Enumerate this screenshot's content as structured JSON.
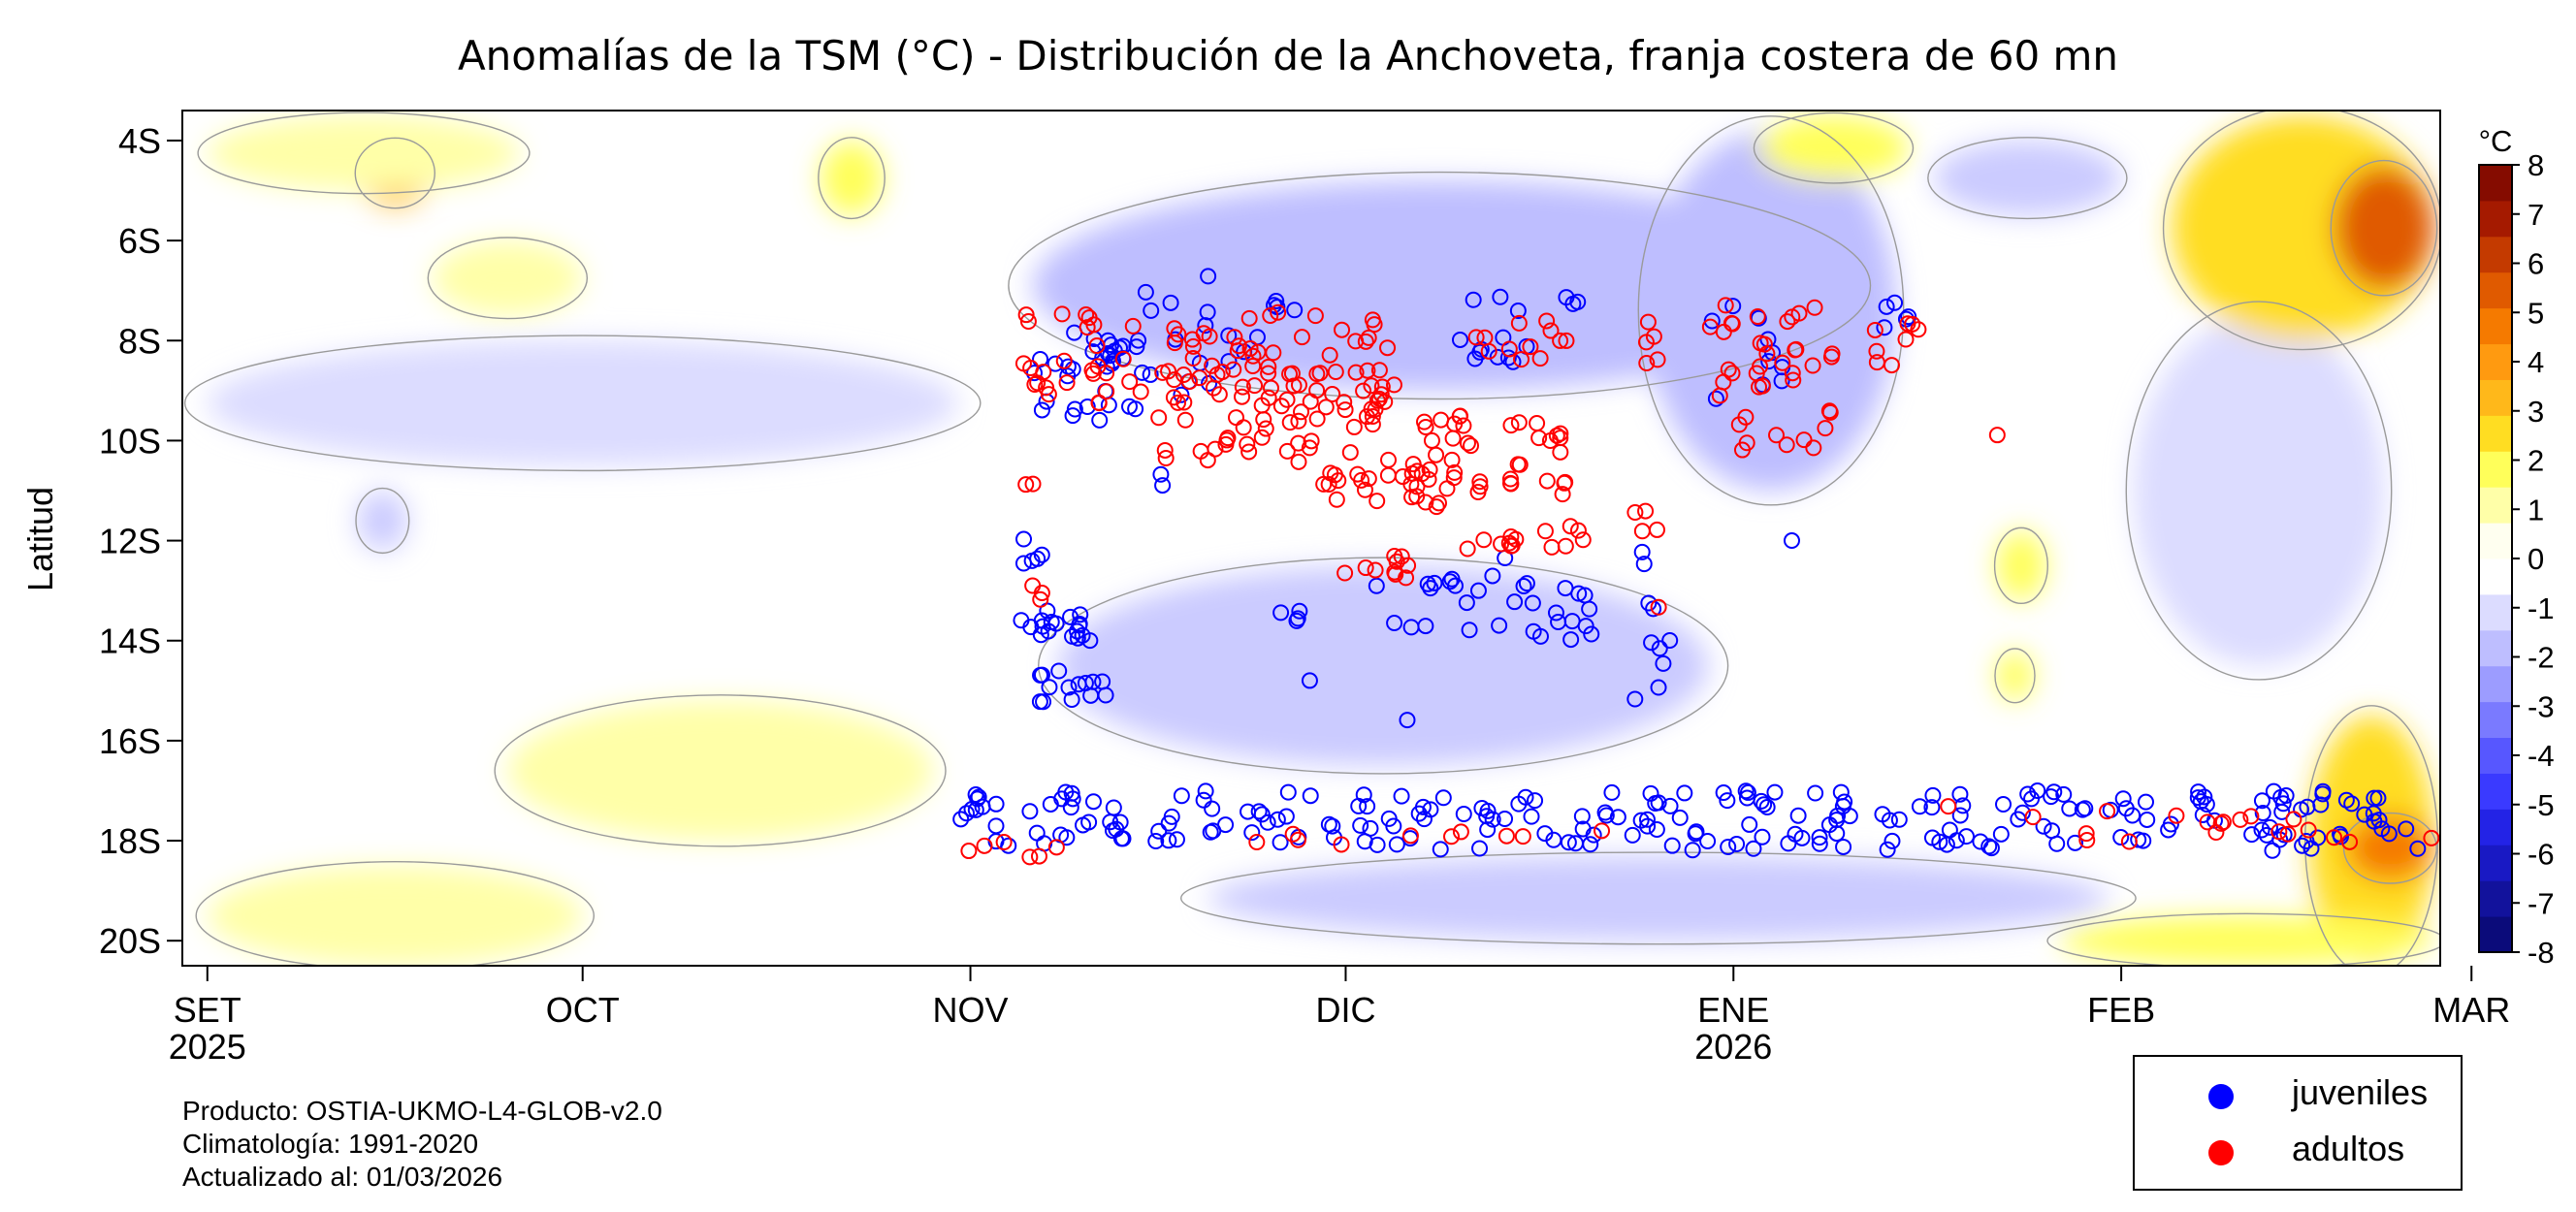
{
  "chart_data": {
    "type": "heatmap",
    "title": "Anomalías de la TSM (°C) - Distribución de la Anchoveta, franja costera de 60 mn",
    "ylabel": "Latitud",
    "y_ticks": [
      "4S",
      "6S",
      "8S",
      "10S",
      "12S",
      "14S",
      "16S",
      "18S",
      "20S"
    ],
    "y_tick_values": [
      4,
      6,
      8,
      10,
      12,
      14,
      16,
      18,
      20
    ],
    "ylim": [
      3.4,
      20.5
    ],
    "x_ticks": [
      {
        "label": "SET",
        "year": "2025",
        "day": 0
      },
      {
        "label": "OCT",
        "year": "",
        "day": 30
      },
      {
        "label": "NOV",
        "year": "",
        "day": 61
      },
      {
        "label": "DIC",
        "year": "",
        "day": 91
      },
      {
        "label": "ENE",
        "year": "2026",
        "day": 122
      },
      {
        "label": "FEB",
        "year": "",
        "day": 153
      },
      {
        "label": "MAR",
        "year": "",
        "day": 181
      }
    ],
    "xlim_days": [
      -2,
      178.5
    ],
    "colorbar": {
      "unit": "°C",
      "min": -8,
      "max": 8,
      "labels": [
        "8",
        "7",
        "6",
        "5",
        "4",
        "3",
        "2",
        "1",
        "0",
        "-1",
        "-2",
        "-3",
        "-4",
        "-5",
        "-6",
        "-7",
        "-8"
      ],
      "colors_low_to_high": [
        "#0b0b7a",
        "#12129c",
        "#1919c4",
        "#2323e6",
        "#3a3aff",
        "#5757ff",
        "#7a7aff",
        "#9c9cff",
        "#bebeff",
        "#dcdcff",
        "#ffffff",
        "#fffff0",
        "#ffffa8",
        "#ffff5a",
        "#ffdd22",
        "#ffb81a",
        "#ff9a10",
        "#f57a00",
        "#e05a00",
        "#c43a00",
        "#a51a00",
        "#850c00"
      ]
    },
    "anomaly_regions": [
      {
        "sign": "neg",
        "day_start": 66,
        "day_end": 131,
        "lat_start": 4.8,
        "lat_end": 9.0,
        "value": -1.6
      },
      {
        "sign": "neg",
        "day_start": 115,
        "day_end": 135,
        "lat_start": 3.8,
        "lat_end": 11.0,
        "value": -1.9
      },
      {
        "sign": "neg",
        "day_start": 68,
        "day_end": 120,
        "lat_start": 12.5,
        "lat_end": 16.5,
        "value": -1.4
      },
      {
        "sign": "neg",
        "day_start": 80,
        "day_end": 152,
        "lat_start": 18.3,
        "lat_end": 20.0,
        "value": -1.2
      },
      {
        "sign": "neg",
        "day_start": 138,
        "day_end": 153,
        "lat_start": 4.0,
        "lat_end": 5.5,
        "value": -1.5
      },
      {
        "sign": "neg",
        "day_start": 154,
        "day_end": 174,
        "lat_start": 7.5,
        "lat_end": 14.5,
        "value": -1.0
      },
      {
        "sign": "neg",
        "day_start": 12,
        "day_end": 16,
        "lat_start": 11.0,
        "lat_end": 12.2,
        "value": -1.4
      },
      {
        "sign": "neg",
        "day_start": 0,
        "day_end": 60,
        "lat_start": 8.0,
        "lat_end": 10.5,
        "value": -0.6
      },
      {
        "sign": "pos",
        "day_start": 157,
        "day_end": 178,
        "lat_start": 3.5,
        "lat_end": 8.0,
        "value": 2.3
      },
      {
        "sign": "pos",
        "day_start": 170,
        "day_end": 178,
        "lat_start": 4.5,
        "lat_end": 7.0,
        "value": 4.2
      },
      {
        "sign": "pos",
        "day_start": 168,
        "day_end": 178,
        "lat_start": 15.5,
        "lat_end": 20.5,
        "value": 2.2
      },
      {
        "sign": "pos",
        "day_start": 171,
        "day_end": 178,
        "lat_start": 17.5,
        "lat_end": 18.8,
        "value": 3.2
      },
      {
        "sign": "pos",
        "day_start": 148,
        "day_end": 178,
        "lat_start": 19.5,
        "lat_end": 20.5,
        "value": 1.6
      },
      {
        "sign": "pos",
        "day_start": 12,
        "day_end": 18,
        "lat_start": 4.0,
        "lat_end": 5.3,
        "value": 2.6
      },
      {
        "sign": "pos",
        "day_start": 0,
        "day_end": 25,
        "lat_start": 3.5,
        "lat_end": 5.0,
        "value": 1.0
      },
      {
        "sign": "pos",
        "day_start": 49,
        "day_end": 54,
        "lat_start": 4.0,
        "lat_end": 5.5,
        "value": 1.8
      },
      {
        "sign": "pos",
        "day_start": 124,
        "day_end": 136,
        "lat_start": 3.5,
        "lat_end": 4.8,
        "value": 1.2
      },
      {
        "sign": "pos",
        "day_start": 143,
        "day_end": 147,
        "lat_start": 11.8,
        "lat_end": 13.2,
        "value": 1.5
      },
      {
        "sign": "pos",
        "day_start": 143,
        "day_end": 146,
        "lat_start": 14.2,
        "lat_end": 15.2,
        "value": 1.3
      },
      {
        "sign": "pos",
        "day_start": 24,
        "day_end": 58,
        "lat_start": 15.2,
        "lat_end": 18.0,
        "value": 0.7
      },
      {
        "sign": "pos",
        "day_start": 0,
        "day_end": 30,
        "lat_start": 18.5,
        "lat_end": 20.5,
        "value": 0.6
      },
      {
        "sign": "pos",
        "day_start": 18,
        "day_end": 30,
        "lat_start": 6.0,
        "lat_end": 7.5,
        "value": 0.6
      }
    ],
    "series": [
      {
        "name": "juveniles",
        "color": "#0000ff",
        "clusters": [
          {
            "d0": 65,
            "d1": 75,
            "l0": 7.8,
            "l1": 9.6,
            "n": 30
          },
          {
            "d0": 72,
            "d1": 84,
            "l0": 6.7,
            "l1": 9.2,
            "n": 20
          },
          {
            "d0": 65,
            "d1": 68,
            "l0": 11.8,
            "l1": 12.5,
            "n": 5
          },
          {
            "d0": 65,
            "d1": 72,
            "l0": 13.4,
            "l1": 14.0,
            "n": 18
          },
          {
            "d0": 66,
            "d1": 72,
            "l0": 14.6,
            "l1": 15.3,
            "n": 14
          },
          {
            "d0": 76,
            "d1": 77,
            "l0": 10.6,
            "l1": 10.9,
            "n": 2
          },
          {
            "d0": 84,
            "d1": 89,
            "l0": 7.0,
            "l1": 7.4,
            "n": 4
          },
          {
            "d0": 85,
            "d1": 88,
            "l0": 13.4,
            "l1": 13.7,
            "n": 4
          },
          {
            "d0": 88,
            "d1": 89,
            "l0": 14.7,
            "l1": 14.9,
            "n": 1
          },
          {
            "d0": 93,
            "d1": 104,
            "l0": 12.3,
            "l1": 13.8,
            "n": 16
          },
          {
            "d0": 100,
            "d1": 106,
            "l0": 7.0,
            "l1": 8.5,
            "n": 12
          },
          {
            "d0": 104,
            "d1": 112,
            "l0": 12.8,
            "l1": 14.1,
            "n": 16
          },
          {
            "d0": 108,
            "d1": 110,
            "l0": 7.1,
            "l1": 7.4,
            "n": 3
          },
          {
            "d0": 114,
            "d1": 117,
            "l0": 11.5,
            "l1": 15.2,
            "n": 10
          },
          {
            "d0": 120,
            "d1": 126,
            "l0": 7.3,
            "l1": 9.2,
            "n": 10
          },
          {
            "d0": 126,
            "d1": 127,
            "l0": 11.9,
            "l1": 12.1,
            "n": 1
          },
          {
            "d0": 134,
            "d1": 136,
            "l0": 7.2,
            "l1": 8.0,
            "n": 5
          },
          {
            "d0": 95,
            "d1": 96,
            "l0": 15.5,
            "l1": 15.7,
            "n": 1
          },
          {
            "d0": 60,
            "d1": 178,
            "l0": 17.0,
            "l1": 18.2,
            "n": 240
          }
        ]
      },
      {
        "name": "adultos",
        "color": "#ff0000",
        "clusters": [
          {
            "d0": 65,
            "d1": 95,
            "l0": 7.4,
            "l1": 9.3,
            "n": 80
          },
          {
            "d0": 76,
            "d1": 95,
            "l0": 8.5,
            "l1": 10.5,
            "n": 60
          },
          {
            "d0": 89,
            "d1": 97,
            "l0": 10.4,
            "l1": 11.3,
            "n": 20
          },
          {
            "d0": 97,
            "d1": 102,
            "l0": 9.5,
            "l1": 11.4,
            "n": 25
          },
          {
            "d0": 100,
            "d1": 108,
            "l0": 7.6,
            "l1": 8.4,
            "n": 10
          },
          {
            "d0": 104,
            "d1": 109,
            "l0": 9.6,
            "l1": 11.2,
            "n": 18
          },
          {
            "d0": 108,
            "d1": 109,
            "l0": 8.0,
            "l1": 8.2,
            "n": 2
          },
          {
            "d0": 115,
            "d1": 116,
            "l0": 7.6,
            "l1": 8.5,
            "n": 5
          },
          {
            "d0": 120,
            "d1": 130,
            "l0": 7.2,
            "l1": 10.2,
            "n": 40
          },
          {
            "d0": 133,
            "d1": 137,
            "l0": 7.6,
            "l1": 8.6,
            "n": 8
          },
          {
            "d0": 65,
            "d1": 66,
            "l0": 10.8,
            "l1": 11.2,
            "n": 2
          },
          {
            "d0": 65,
            "d1": 67,
            "l0": 12.9,
            "l1": 13.3,
            "n": 3
          },
          {
            "d0": 90,
            "d1": 97,
            "l0": 12.3,
            "l1": 12.8,
            "n": 10
          },
          {
            "d0": 98,
            "d1": 106,
            "l0": 11.8,
            "l1": 12.2,
            "n": 8
          },
          {
            "d0": 106,
            "d1": 110,
            "l0": 11.7,
            "l1": 12.2,
            "n": 6
          },
          {
            "d0": 114,
            "d1": 116,
            "l0": 11.2,
            "l1": 12.0,
            "n": 4
          },
          {
            "d0": 116,
            "d1": 117,
            "l0": 13.3,
            "l1": 13.4,
            "n": 1
          },
          {
            "d0": 143,
            "d1": 144,
            "l0": 9.8,
            "l1": 10.0,
            "n": 1
          },
          {
            "d0": 60,
            "d1": 68,
            "l0": 18.0,
            "l1": 18.4,
            "n": 6
          },
          {
            "d0": 139,
            "d1": 178,
            "l0": 17.3,
            "l1": 18.1,
            "n": 20
          },
          {
            "d0": 78,
            "d1": 112,
            "l0": 17.8,
            "l1": 18.1,
            "n": 10
          }
        ]
      }
    ]
  },
  "footer": {
    "producto": "Producto: OSTIA-UKMO-L4-GLOB-v2.0",
    "climatologia": "Climatología: 1991-2020",
    "actualizado": "Actualizado al: 01/03/2026"
  },
  "legend": {
    "items": [
      {
        "label": "juveniles",
        "color": "#0000ff"
      },
      {
        "label": "adultos",
        "color": "#ff0000"
      }
    ]
  }
}
